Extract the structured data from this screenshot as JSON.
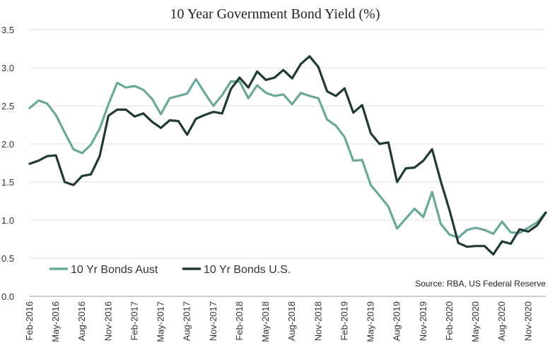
{
  "chart_data": {
    "type": "line",
    "title": "10 Year Government Bond Yield (%)",
    "source": "Source: RBA, US Federal Reserve",
    "ylim": [
      0,
      3.5
    ],
    "yticks": [
      "0.0",
      "0.5",
      "1.0",
      "1.5",
      "2.0",
      "2.5",
      "3.0",
      "3.5"
    ],
    "xticks": [
      "Feb-2016",
      "May-2016",
      "Aug-2016",
      "Nov-2016",
      "Feb-2017",
      "May-2017",
      "Aug-2017",
      "Nov-2017",
      "Feb-2018",
      "May-2018",
      "Aug-2018",
      "Nov-2018",
      "Feb-2019",
      "May-2019",
      "Aug-2019",
      "Nov-2019",
      "Feb-2020",
      "May-2020",
      "Aug-2020",
      "Nov-2020"
    ],
    "x_start": "Feb-2016",
    "x_end": "Jan-2021",
    "grid": "horizontal",
    "legend": "bottom-left",
    "series": [
      {
        "name": "10 Yr Bonds Aust",
        "color": "#6aa89a",
        "values": [
          2.47,
          2.57,
          2.53,
          2.38,
          2.15,
          1.93,
          1.88,
          1.99,
          2.2,
          2.52,
          2.8,
          2.74,
          2.76,
          2.71,
          2.59,
          2.39,
          2.6,
          2.63,
          2.66,
          2.85,
          2.67,
          2.5,
          2.64,
          2.82,
          2.82,
          2.6,
          2.77,
          2.67,
          2.63,
          2.65,
          2.52,
          2.67,
          2.63,
          2.6,
          2.32,
          2.24,
          2.09,
          1.78,
          1.79,
          1.46,
          1.32,
          1.18,
          0.89,
          1.02,
          1.15,
          1.04,
          1.37,
          0.95,
          0.81,
          0.77,
          0.87,
          0.9,
          0.87,
          0.82,
          0.98,
          0.84,
          0.83,
          0.9,
          0.97,
          1.1
        ]
      },
      {
        "name": "10 Yr Bonds U.S.",
        "color": "#1f3a33",
        "values": [
          1.74,
          1.78,
          1.84,
          1.85,
          1.5,
          1.46,
          1.58,
          1.6,
          1.84,
          2.37,
          2.45,
          2.45,
          2.36,
          2.4,
          2.29,
          2.21,
          2.31,
          2.3,
          2.12,
          2.33,
          2.38,
          2.42,
          2.4,
          2.72,
          2.87,
          2.74,
          2.95,
          2.84,
          2.87,
          2.97,
          2.86,
          3.05,
          3.15,
          3.01,
          2.69,
          2.63,
          2.73,
          2.41,
          2.51,
          2.14,
          2.0,
          2.02,
          1.5,
          1.68,
          1.69,
          1.78,
          1.93,
          1.51,
          1.13,
          0.7,
          0.65,
          0.66,
          0.66,
          0.55,
          0.72,
          0.69,
          0.88,
          0.85,
          0.93,
          1.1
        ]
      }
    ]
  }
}
